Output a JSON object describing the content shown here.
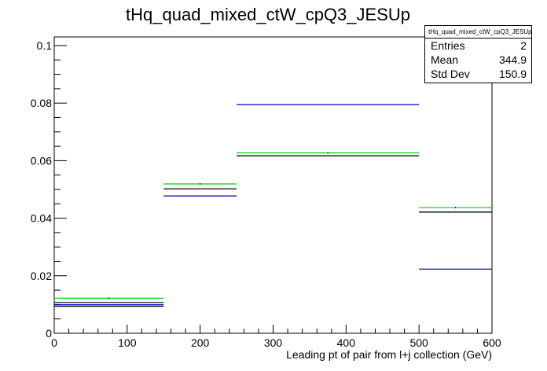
{
  "chart_data": {
    "type": "histogram",
    "title": "tHq_quad_mixed_ctW_cpQ3_JESUp",
    "xlabel": "Leading pt of pair from l+j collection (GeV)",
    "ylabel": "",
    "xlim": [
      0,
      600
    ],
    "ylim": [
      0,
      0.103
    ],
    "x_ticks": [
      0,
      100,
      200,
      300,
      400,
      500,
      600
    ],
    "x_tick_labels": [
      "0",
      "100",
      "200",
      "300",
      "400",
      "500",
      "600"
    ],
    "y_ticks": [
      0,
      0.02,
      0.04,
      0.06,
      0.08,
      0.1
    ],
    "y_tick_labels": [
      "0",
      "0.02",
      "0.04",
      "0.06",
      "0.08",
      "0.1"
    ],
    "bin_edges": [
      0,
      150,
      250,
      500,
      600
    ],
    "series": [
      {
        "color": "#00cc00",
        "values": [
          0.0122,
          0.0519,
          0.0627,
          0.0437
        ]
      },
      {
        "color": "#000000",
        "values": [
          0.0107,
          0.0502,
          0.0617,
          0.0421
        ]
      },
      {
        "color": "#000000",
        "values": [
          0.0094,
          0.0477,
          0.0617,
          0.0421
        ]
      },
      {
        "color": "#0000cc",
        "values": [
          0.0099,
          0.0477,
          0.0795,
          0.0223
        ]
      }
    ],
    "markers": {
      "x": [
        75,
        200,
        375,
        550
      ],
      "y": [
        0.0122,
        0.0519,
        0.0627,
        0.0437
      ]
    },
    "grid": false,
    "stats": {
      "name": "tHq_quad_mixed_ctW_cpQ3_JESUp",
      "rows": [
        {
          "label": "Entries",
          "value": "2"
        },
        {
          "label": "Mean",
          "value": "344.9"
        },
        {
          "label": "Std Dev",
          "value": "150.9"
        }
      ]
    }
  }
}
